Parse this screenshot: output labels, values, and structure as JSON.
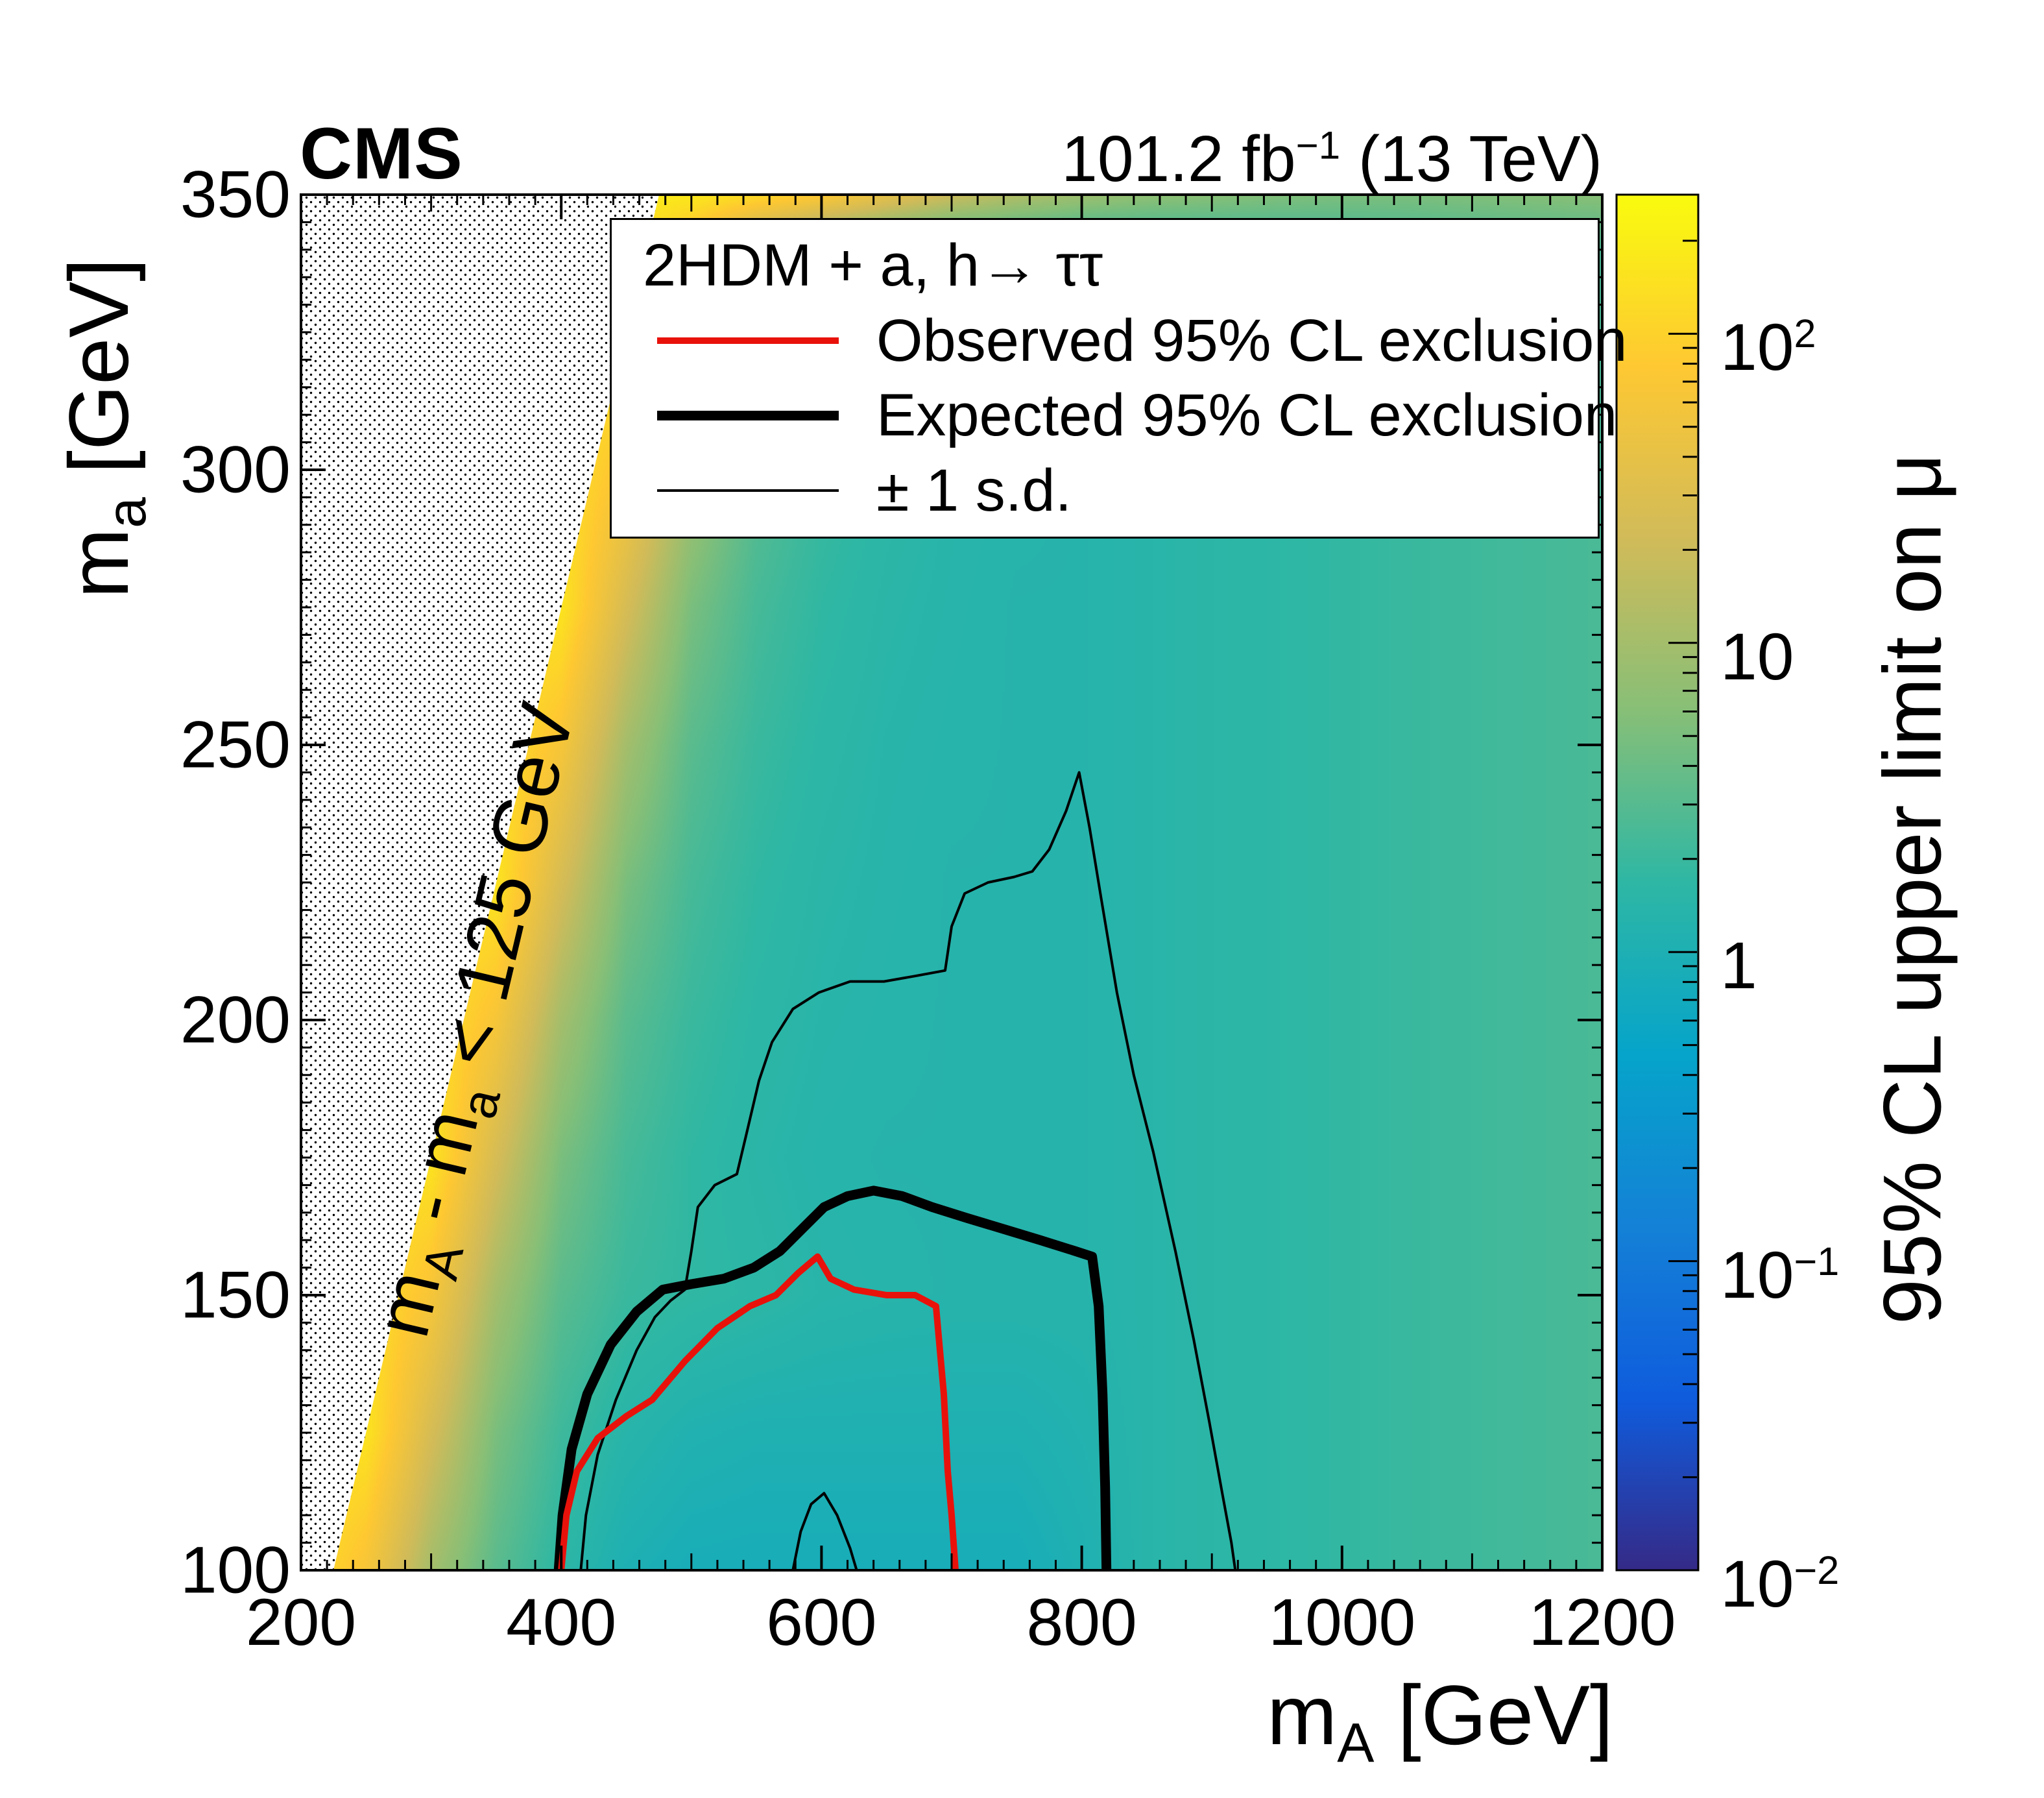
{
  "header": {
    "experiment": "CMS",
    "lumi": {
      "value": "101.2 fb",
      "exp": "−1",
      "suffix": " (13 TeV)"
    }
  },
  "axes": {
    "x": {
      "pre": "m",
      "sub": "A",
      "post": " [GeV]"
    },
    "y": {
      "pre": "m",
      "sub": "a",
      "post": " [GeV]"
    },
    "z": {
      "title": "95% CL upper limit on μ",
      "tick_labels": [
        {
          "b": "10",
          "e": "2"
        },
        {
          "b": "10",
          "e": ""
        },
        {
          "b": "1",
          "e": ""
        },
        {
          "b": "10",
          "e": "−1"
        },
        {
          "b": "10",
          "e": "−2"
        }
      ]
    }
  },
  "excluded": {
    "p1": "m",
    "s1": "A",
    "p2": " - m",
    "s2": "a",
    "p3": " < 125 GeV"
  },
  "legend": {
    "header": "2HDM + a, h→ ττ",
    "entries": [
      {
        "label": "Observed 95% CL exclusion",
        "color": "#e8120b",
        "line_width": 10
      },
      {
        "label": "Expected 95% CL exclusion",
        "color": "#000000",
        "line_width": 15
      },
      {
        "label": "± 1 s.d.",
        "color": "#000000",
        "line_width": 4
      }
    ]
  },
  "chart_data": {
    "type": "heatmap",
    "title": "2HDM + a, h→ ττ",
    "xlabel": "m_A [GeV]",
    "ylabel": "m_a [GeV]",
    "zlabel": "95% CL upper limit on μ",
    "units": "GeV",
    "xlim": [
      200,
      1200
    ],
    "ylim": [
      100,
      350
    ],
    "zscale": "log",
    "zlim_log10": [
      -2,
      2.45
    ],
    "x_ticks": [
      200,
      400,
      600,
      800,
      1000,
      1200
    ],
    "y_ticks": [
      100,
      150,
      200,
      250,
      300,
      350
    ],
    "z_tick_exponents": [
      2,
      1,
      0,
      -1,
      -2
    ],
    "x": [
      200,
      250,
      300,
      350,
      400,
      450,
      500,
      550,
      600,
      650,
      700,
      750,
      800,
      850,
      900,
      950,
      1000,
      1050,
      1100,
      1150,
      1200
    ],
    "y": [
      100,
      125,
      150,
      175,
      200,
      225,
      250,
      275,
      300,
      325,
      340,
      350
    ],
    "z_note": "z values are log10 of the 95% CL upper limit on mu, estimated from the colour scale; rows ordered with m_a ascending",
    "z_log10": [
      [
        2.2,
        1.8,
        1.0,
        0.5,
        0.2,
        0.0,
        -0.07,
        -0.08,
        -0.08,
        -0.08,
        -0.08,
        -0.08,
        0.02,
        0.15,
        0.18,
        0.21,
        0.25,
        0.29,
        0.33,
        0.36,
        0.4
      ],
      [
        2.2,
        2.2,
        1.4,
        0.7,
        0.33,
        0.14,
        0.05,
        0.02,
        0.02,
        0.02,
        0.02,
        0.02,
        0.07,
        0.15,
        0.18,
        0.21,
        0.25,
        0.29,
        0.33,
        0.36,
        0.4
      ],
      [
        2.2,
        2.2,
        1.8,
        1.0,
        0.5,
        0.3,
        0.24,
        0.2,
        0.15,
        0.13,
        0.12,
        0.12,
        0.12,
        0.15,
        0.18,
        0.21,
        0.25,
        0.29,
        0.33,
        0.36,
        0.4
      ],
      [
        2.2,
        2.2,
        2.2,
        1.4,
        0.7,
        0.38,
        0.24,
        0.17,
        0.13,
        0.12,
        0.12,
        0.12,
        0.12,
        0.15,
        0.18,
        0.21,
        0.25,
        0.29,
        0.33,
        0.36,
        0.4
      ],
      [
        2.2,
        2.2,
        2.2,
        1.8,
        1.0,
        0.5,
        0.3,
        0.2,
        0.15,
        0.13,
        0.12,
        0.12,
        0.12,
        0.15,
        0.18,
        0.21,
        0.25,
        0.29,
        0.33,
        0.36,
        0.4
      ],
      [
        2.2,
        2.2,
        2.2,
        2.2,
        1.4,
        0.7,
        0.38,
        0.24,
        0.17,
        0.14,
        0.12,
        0.12,
        0.12,
        0.15,
        0.18,
        0.21,
        0.25,
        0.29,
        0.33,
        0.36,
        0.4
      ],
      [
        2.2,
        2.2,
        2.2,
        2.2,
        1.8,
        1.0,
        0.5,
        0.3,
        0.2,
        0.15,
        0.13,
        0.12,
        0.12,
        0.15,
        0.18,
        0.21,
        0.25,
        0.29,
        0.33,
        0.36,
        0.4
      ],
      [
        2.2,
        2.2,
        2.2,
        2.2,
        2.2,
        1.4,
        0.7,
        0.38,
        0.24,
        0.17,
        0.14,
        0.12,
        0.12,
        0.15,
        0.18,
        0.21,
        0.25,
        0.29,
        0.33,
        0.36,
        0.4
      ],
      [
        2.2,
        2.2,
        2.2,
        2.2,
        2.2,
        1.8,
        1.0,
        0.5,
        0.3,
        0.2,
        0.15,
        0.13,
        0.12,
        0.15,
        0.18,
        0.21,
        0.25,
        0.29,
        0.33,
        0.36,
        0.4
      ],
      [
        2.2,
        2.2,
        2.2,
        2.2,
        2.2,
        2.2,
        1.4,
        0.7,
        0.38,
        0.24,
        0.17,
        0.14,
        0.13,
        0.16,
        0.19,
        0.22,
        0.26,
        0.3,
        0.34,
        0.37,
        0.41
      ],
      [
        2.2,
        2.2,
        2.2,
        2.2,
        2.2,
        2.2,
        1.7,
        0.9,
        0.45,
        0.28,
        0.19,
        0.15,
        0.13,
        0.16,
        0.19,
        0.22,
        0.26,
        0.3,
        0.34,
        0.37,
        0.41
      ],
      [
        2.3,
        2.3,
        2.3,
        2.3,
        2.3,
        2.3,
        2.25,
        2.1,
        1.9,
        1.6,
        1.3,
        1.1,
        0.95,
        0.85,
        0.8,
        0.75,
        0.72,
        0.72,
        0.75,
        0.78,
        0.8
      ]
    ],
    "excluded_region": {
      "condition": "m_A - m_a < 125 GeV",
      "boundary_points_mA_ma": [
        [
          225,
          100
        ],
        [
          475,
          350
        ]
      ]
    },
    "palette_stops": [
      "#352A87",
      "#0F5CDD",
      "#1481D6",
      "#06A4CA",
      "#2EB7A4",
      "#87BF77",
      "#D1BB59",
      "#FEC832",
      "#F9FB0E"
    ],
    "contours": {
      "sd_upper": {
        "name": "+1 s.d. of expected exclusion",
        "color": "#000000",
        "line_width": 4,
        "points": [
          [
            415,
            100
          ],
          [
            419,
            110
          ],
          [
            428,
            121
          ],
          [
            442,
            131
          ],
          [
            458,
            140
          ],
          [
            472,
            146
          ],
          [
            484,
            149
          ],
          [
            495,
            151
          ],
          [
            500,
            158
          ],
          [
            505,
            166
          ],
          [
            518,
            170
          ],
          [
            535,
            172
          ],
          [
            542,
            179
          ],
          [
            552,
            189
          ],
          [
            562,
            196
          ],
          [
            578,
            202
          ],
          [
            598,
            205
          ],
          [
            622,
            207
          ],
          [
            648,
            207
          ],
          [
            672,
            208
          ],
          [
            695,
            209
          ],
          [
            700,
            217
          ],
          [
            710,
            223
          ],
          [
            728,
            225
          ],
          [
            748,
            226
          ],
          [
            762,
            227
          ],
          [
            775,
            231
          ],
          [
            788,
            238
          ],
          [
            798,
            245
          ],
          [
            806,
            235
          ],
          [
            815,
            222
          ],
          [
            827,
            205
          ],
          [
            840,
            190
          ],
          [
            855,
            176
          ],
          [
            872,
            158
          ],
          [
            886,
            142
          ],
          [
            898,
            127
          ],
          [
            908,
            114
          ],
          [
            915,
            105
          ],
          [
            918,
            100
          ]
        ]
      },
      "sd_lower": {
        "name": "-1 s.d. of expected exclusion",
        "color": "#000000",
        "line_width": 4,
        "points": [
          [
            578,
            100
          ],
          [
            584,
            107
          ],
          [
            592,
            112
          ],
          [
            602,
            114
          ],
          [
            612,
            110
          ],
          [
            622,
            104
          ],
          [
            627,
            100
          ]
        ]
      },
      "expected_95cl": {
        "name": "Expected 95% CL exclusion",
        "color": "#000000",
        "line_width": 15,
        "points": [
          [
            398,
            100
          ],
          [
            401,
            110
          ],
          [
            408,
            122
          ],
          [
            420,
            132
          ],
          [
            438,
            141
          ],
          [
            458,
            147
          ],
          [
            478,
            151
          ],
          [
            500,
            152
          ],
          [
            525,
            153
          ],
          [
            548,
            155
          ],
          [
            568,
            158
          ],
          [
            585,
            162
          ],
          [
            602,
            166
          ],
          [
            620,
            168
          ],
          [
            640,
            169
          ],
          [
            662,
            168
          ],
          [
            685,
            166
          ],
          [
            712,
            164
          ],
          [
            740,
            162
          ],
          [
            768,
            160
          ],
          [
            795,
            158
          ],
          [
            808,
            157
          ],
          [
            813,
            148
          ],
          [
            816,
            132
          ],
          [
            818,
            115
          ],
          [
            819,
            100
          ]
        ]
      },
      "observed_95cl": {
        "name": "Observed 95% CL exclusion",
        "color": "#e8120b",
        "line_width": 10,
        "points": [
          [
            400,
            100
          ],
          [
            404,
            110
          ],
          [
            412,
            118
          ],
          [
            428,
            124
          ],
          [
            450,
            128
          ],
          [
            470,
            131
          ],
          [
            495,
            138
          ],
          [
            520,
            144
          ],
          [
            545,
            148
          ],
          [
            565,
            150
          ],
          [
            582,
            154
          ],
          [
            597,
            157
          ],
          [
            607,
            153
          ],
          [
            625,
            151
          ],
          [
            650,
            150
          ],
          [
            672,
            150
          ],
          [
            688,
            148
          ],
          [
            694,
            132
          ],
          [
            697,
            118
          ],
          [
            700,
            110
          ],
          [
            703,
            100
          ]
        ]
      }
    }
  }
}
